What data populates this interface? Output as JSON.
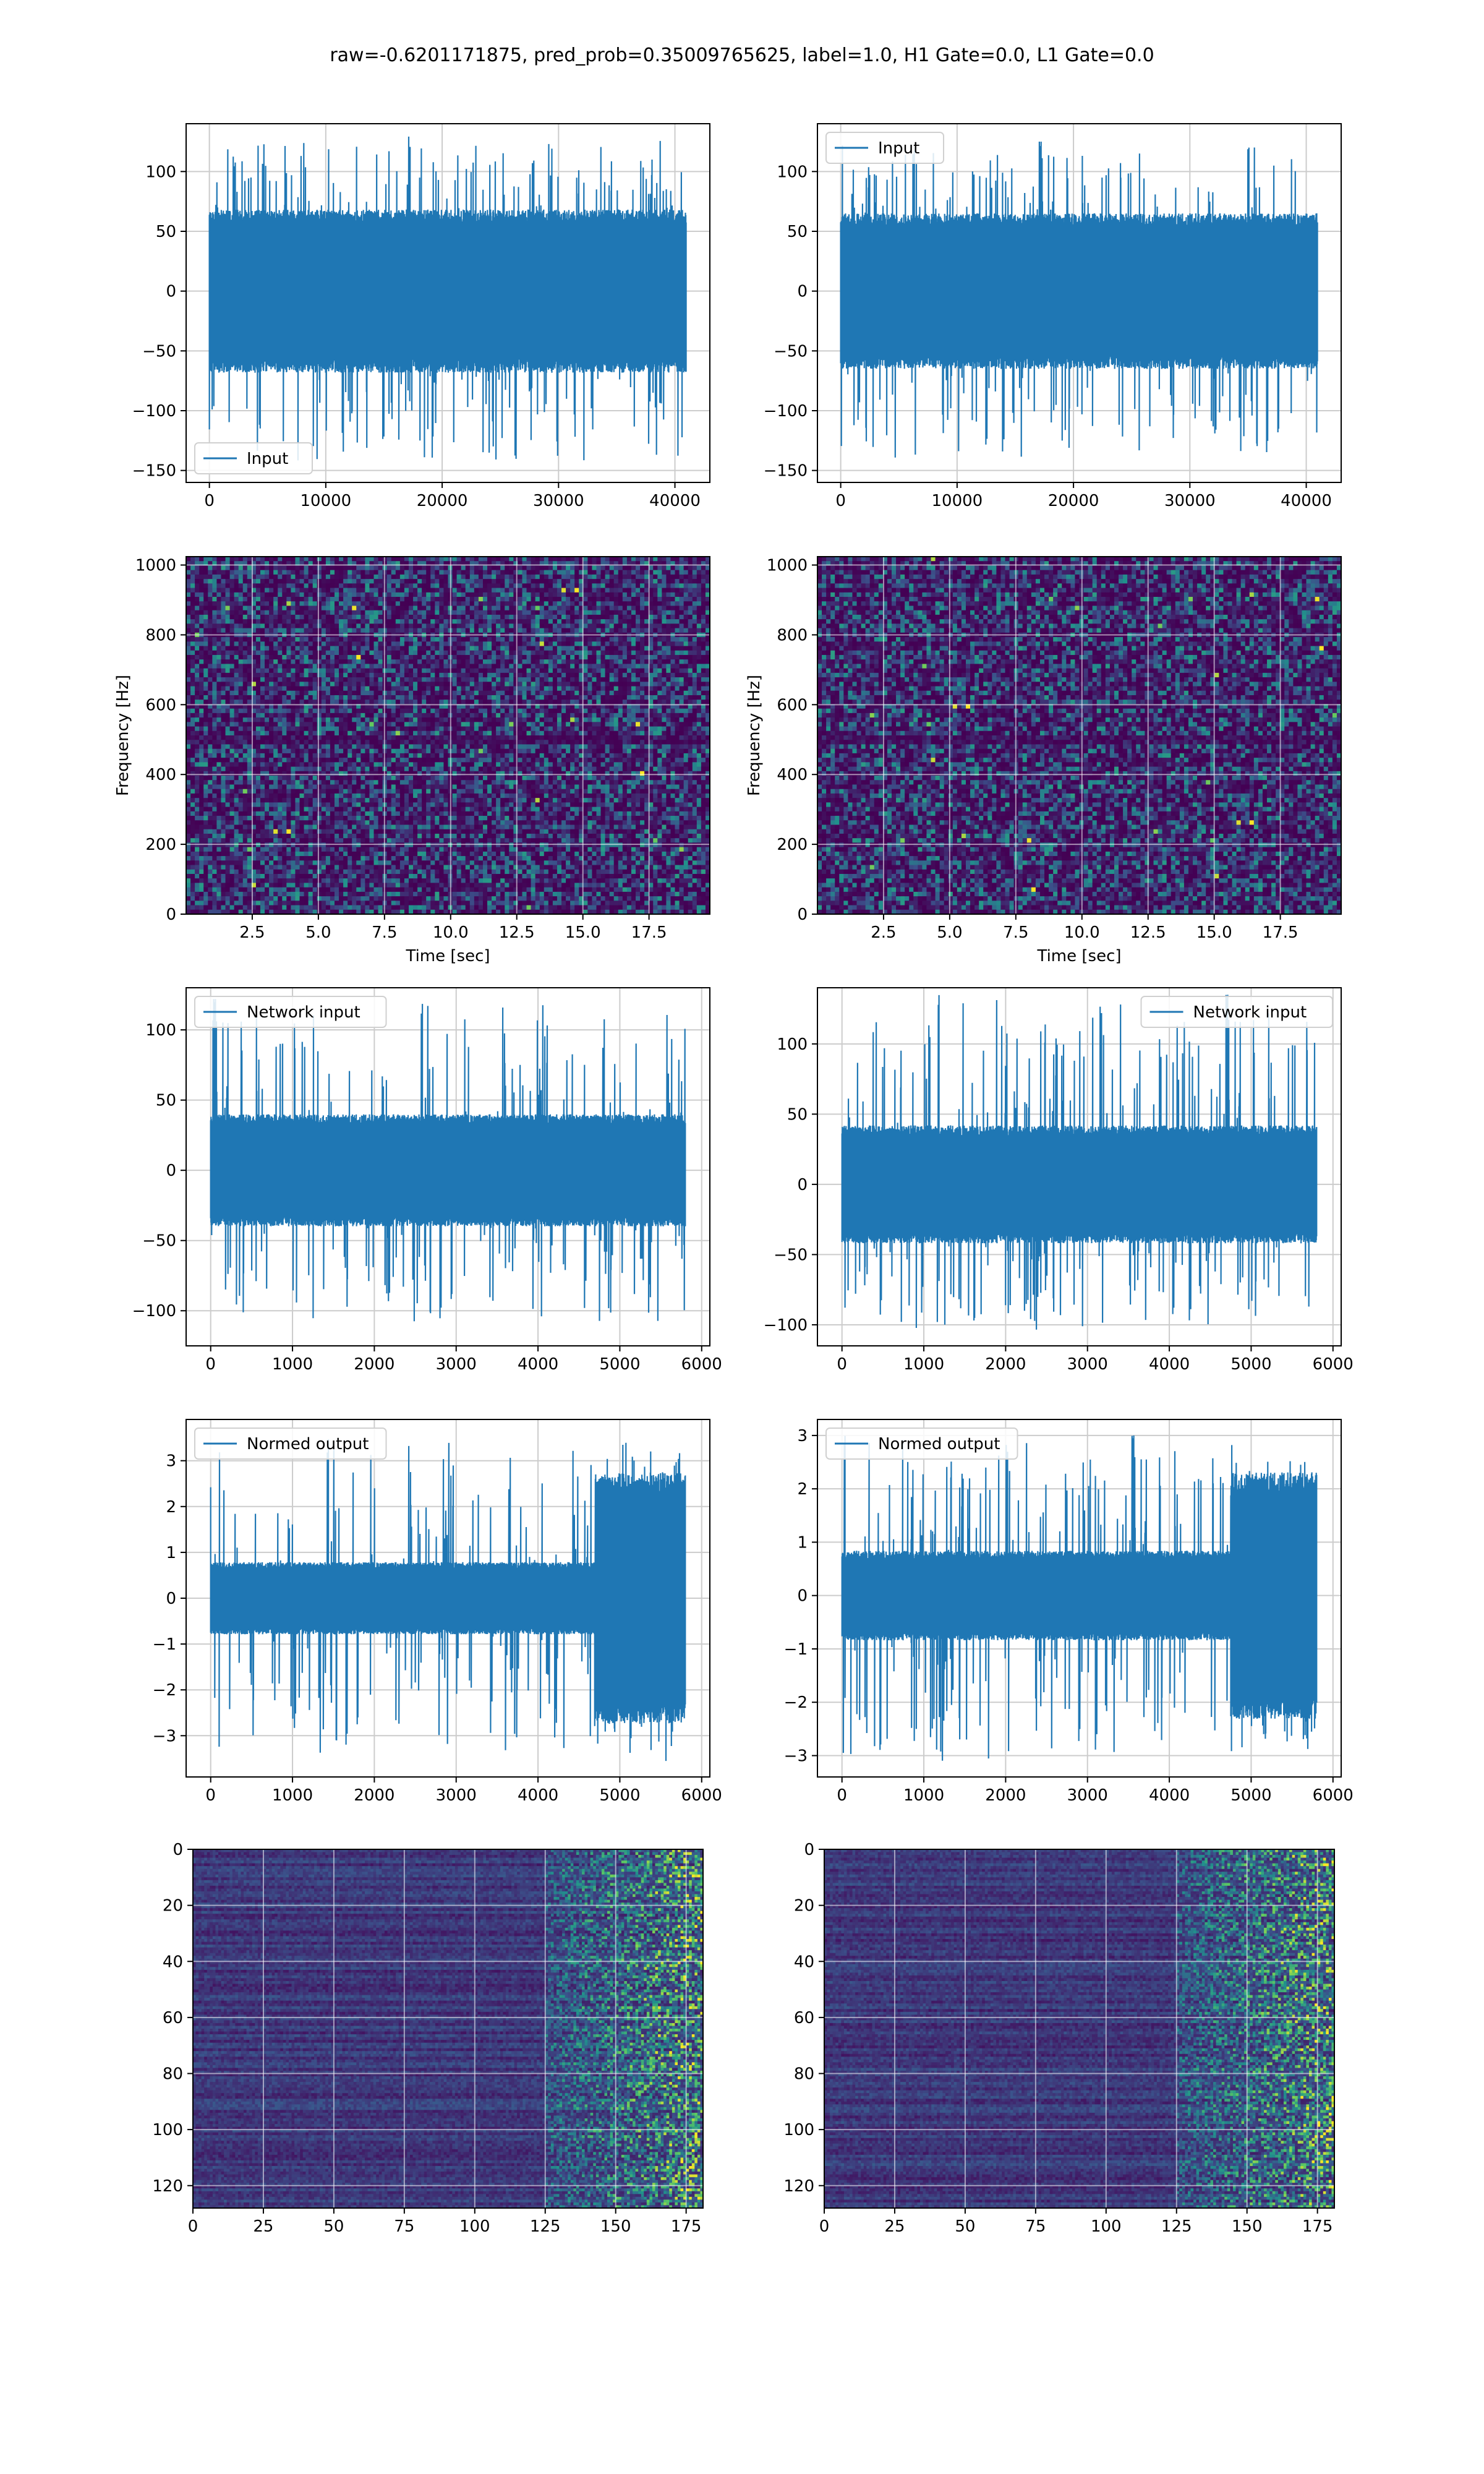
{
  "figure": {
    "title": "raw=-0.6201171875, pred_prob=0.35009765625, label=1.0, H1 Gate=0.0, L1 Gate=0.0",
    "colors": {
      "line": "#1f77b4",
      "grid": "#cccccc",
      "viridis": [
        "#440154",
        "#3b528b",
        "#21918c",
        "#5ec962",
        "#fde725"
      ]
    }
  },
  "chart_data": [
    {
      "id": "input-left",
      "type": "line",
      "series": [
        {
          "name": "Input",
          "envelope": {
            "x_range": [
              0,
              40960
            ],
            "typical_amplitude": 65,
            "peak_max": 130,
            "peak_min": -148
          }
        }
      ],
      "xlim": [
        -2000,
        43000
      ],
      "ylim": [
        -160,
        140
      ],
      "xticks": [
        0,
        10000,
        20000,
        30000,
        40000
      ],
      "yticks": [
        -150,
        -100,
        -50,
        0,
        50,
        100
      ],
      "xticklabels": [
        "0",
        "10000",
        "20000",
        "30000",
        "40000"
      ],
      "yticklabels": [
        "−150",
        "−100",
        "−50",
        "0",
        "50",
        "100"
      ],
      "legend": "lower-left",
      "grid": true,
      "xlabel": "",
      "ylabel": ""
    },
    {
      "id": "input-right",
      "type": "line",
      "series": [
        {
          "name": "Input",
          "envelope": {
            "x_range": [
              0,
              40960
            ],
            "typical_amplitude": 62,
            "peak_max": 125,
            "peak_min": -145
          }
        }
      ],
      "xlim": [
        -2000,
        43000
      ],
      "ylim": [
        -160,
        140
      ],
      "xticks": [
        0,
        10000,
        20000,
        30000,
        40000
      ],
      "yticks": [
        -150,
        -100,
        -50,
        0,
        50,
        100
      ],
      "xticklabels": [
        "0",
        "10000",
        "20000",
        "30000",
        "40000"
      ],
      "yticklabels": [
        "−150",
        "−100",
        "−50",
        "0",
        "50",
        "100"
      ],
      "legend": "top-left",
      "grid": true,
      "xlabel": "",
      "ylabel": ""
    },
    {
      "id": "spectrogram-left",
      "type": "heatmap",
      "xlim": [
        0,
        19.8
      ],
      "ylim": [
        0,
        1024
      ],
      "xticks": [
        2.5,
        5.0,
        7.5,
        10.0,
        12.5,
        15.0,
        17.5
      ],
      "yticks": [
        0,
        200,
        400,
        600,
        800,
        1000
      ],
      "xticklabels": [
        "2.5",
        "5.0",
        "7.5",
        "10.0",
        "12.5",
        "15.0",
        "17.5"
      ],
      "yticklabels": [
        "0",
        "200",
        "400",
        "600",
        "800",
        "1000"
      ],
      "xlabel": "Time [sec]",
      "ylabel": "Frequency [Hz]",
      "grid": true,
      "colormap": "viridis"
    },
    {
      "id": "spectrogram-right",
      "type": "heatmap",
      "xlim": [
        0,
        19.8
      ],
      "ylim": [
        0,
        1024
      ],
      "xticks": [
        2.5,
        5.0,
        7.5,
        10.0,
        12.5,
        15.0,
        17.5
      ],
      "yticks": [
        0,
        200,
        400,
        600,
        800,
        1000
      ],
      "xticklabels": [
        "2.5",
        "5.0",
        "7.5",
        "10.0",
        "12.5",
        "15.0",
        "17.5"
      ],
      "yticklabels": [
        "0",
        "200",
        "400",
        "600",
        "800",
        "1000"
      ],
      "xlabel": "Time [sec]",
      "ylabel": "Frequency [Hz]",
      "grid": true,
      "colormap": "viridis"
    },
    {
      "id": "network-input-left",
      "type": "line",
      "series": [
        {
          "name": "Network input",
          "envelope": {
            "x_range": [
              0,
              5800
            ],
            "typical_amplitude": 38,
            "peak_max": 122,
            "peak_min": -115
          }
        }
      ],
      "xlim": [
        -300,
        6100
      ],
      "ylim": [
        -125,
        130
      ],
      "xticks": [
        0,
        1000,
        2000,
        3000,
        4000,
        5000,
        6000
      ],
      "yticks": [
        -100,
        -50,
        0,
        50,
        100
      ],
      "xticklabels": [
        "0",
        "1000",
        "2000",
        "3000",
        "4000",
        "5000",
        "6000"
      ],
      "yticklabels": [
        "−100",
        "−50",
        "0",
        "50",
        "100"
      ],
      "legend": "top-left",
      "grid": true,
      "xlabel": "",
      "ylabel": ""
    },
    {
      "id": "network-input-right",
      "type": "line",
      "series": [
        {
          "name": "Network input",
          "envelope": {
            "x_range": [
              0,
              5800
            ],
            "typical_amplitude": 40,
            "peak_max": 135,
            "peak_min": -105
          }
        }
      ],
      "xlim": [
        -300,
        6100
      ],
      "ylim": [
        -115,
        140
      ],
      "xticks": [
        0,
        1000,
        2000,
        3000,
        4000,
        5000,
        6000
      ],
      "yticks": [
        -100,
        -50,
        0,
        50,
        100
      ],
      "xticklabels": [
        "0",
        "1000",
        "2000",
        "3000",
        "4000",
        "5000",
        "6000"
      ],
      "yticklabels": [
        "−100",
        "−50",
        "0",
        "50",
        "100"
      ],
      "legend": "top-right",
      "grid": true,
      "xlabel": "",
      "ylabel": ""
    },
    {
      "id": "normed-output-left",
      "type": "line",
      "series": [
        {
          "name": "Normed output",
          "envelope": {
            "x_range": [
              0,
              5800
            ],
            "typical_amplitude": 0.75,
            "burst_start": 4700,
            "burst_amplitude": 2.6,
            "peak_max": 3.55,
            "peak_min": -3.55
          }
        }
      ],
      "xlim": [
        -300,
        6100
      ],
      "ylim": [
        -3.9,
        3.9
      ],
      "xticks": [
        0,
        1000,
        2000,
        3000,
        4000,
        5000,
        6000
      ],
      "yticks": [
        -3,
        -2,
        -1,
        0,
        1,
        2,
        3
      ],
      "xticklabels": [
        "0",
        "1000",
        "2000",
        "3000",
        "4000",
        "5000",
        "6000"
      ],
      "yticklabels": [
        "−3",
        "−2",
        "−1",
        "0",
        "1",
        "2",
        "3"
      ],
      "legend": "top-left",
      "grid": true,
      "xlabel": "",
      "ylabel": ""
    },
    {
      "id": "normed-output-right",
      "type": "line",
      "series": [
        {
          "name": "Normed output",
          "envelope": {
            "x_range": [
              0,
              5800
            ],
            "typical_amplitude": 0.8,
            "burst_start": 4750,
            "burst_amplitude": 2.2,
            "peak_max": 3.0,
            "peak_min": -3.15
          }
        }
      ],
      "xlim": [
        -300,
        6100
      ],
      "ylim": [
        -3.4,
        3.3
      ],
      "xticks": [
        0,
        1000,
        2000,
        3000,
        4000,
        5000,
        6000
      ],
      "yticks": [
        -3,
        -2,
        -1,
        0,
        1,
        2,
        3
      ],
      "xticklabels": [
        "0",
        "1000",
        "2000",
        "3000",
        "4000",
        "5000",
        "6000"
      ],
      "yticklabels": [
        "−3",
        "−2",
        "−1",
        "0",
        "1",
        "2",
        "3"
      ],
      "legend": "top-left",
      "grid": true,
      "xlabel": "",
      "ylabel": ""
    },
    {
      "id": "feature-map-left",
      "type": "heatmap",
      "xlim": [
        0,
        181
      ],
      "ylim": [
        128,
        0
      ],
      "active_from_x": 125,
      "xticks": [
        0,
        25,
        50,
        75,
        100,
        125,
        150,
        175
      ],
      "yticks": [
        0,
        20,
        40,
        60,
        80,
        100,
        120
      ],
      "xticklabels": [
        "0",
        "25",
        "50",
        "75",
        "100",
        "125",
        "150",
        "175"
      ],
      "yticklabels": [
        "0",
        "20",
        "40",
        "60",
        "80",
        "100",
        "120"
      ],
      "grid": true,
      "colormap": "viridis",
      "xlabel": "",
      "ylabel": ""
    },
    {
      "id": "feature-map-right",
      "type": "heatmap",
      "xlim": [
        0,
        181
      ],
      "ylim": [
        128,
        0
      ],
      "active_from_x": 125,
      "xticks": [
        0,
        25,
        50,
        75,
        100,
        125,
        150,
        175
      ],
      "yticks": [
        0,
        20,
        40,
        60,
        80,
        100,
        120
      ],
      "xticklabels": [
        "0",
        "25",
        "50",
        "75",
        "100",
        "125",
        "150",
        "175"
      ],
      "yticklabels": [
        "0",
        "20",
        "40",
        "60",
        "80",
        "100",
        "120"
      ],
      "grid": true,
      "colormap": "viridis",
      "xlabel": "",
      "ylabel": ""
    }
  ]
}
